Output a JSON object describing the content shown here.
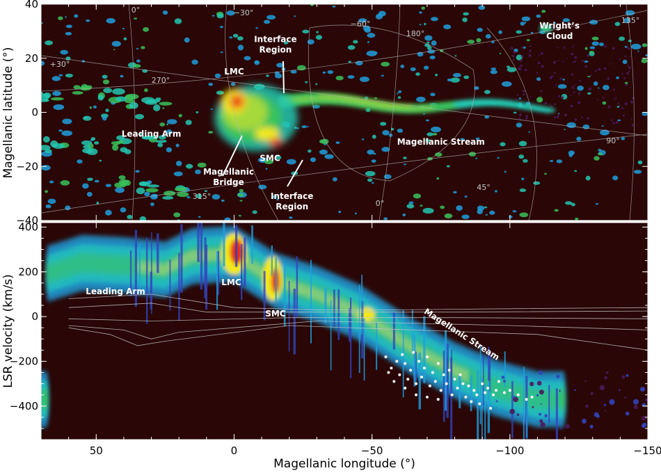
{
  "chart_data": [
    {
      "type": "heatmap",
      "panel": "top",
      "description_source": "HI column density map in Magellanic coordinates",
      "xlabel": "",
      "ylabel": "Magellanic latitude (°)",
      "xlim": [
        70,
        -150
      ],
      "ylim": [
        -40,
        40
      ],
      "yticks": [
        40,
        20,
        0,
        -20,
        -40
      ],
      "yticklabels": [
        "40",
        "20",
        "0",
        "−20",
        "−40"
      ],
      "coordinate_grid_labels": [
        "0°",
        "−30°",
        "−60°",
        "180°",
        "+30°",
        "270°",
        "315°",
        "0°",
        "45°",
        "90°",
        "135°"
      ],
      "annotations": [
        {
          "text": "Interface",
          "text2": "Region",
          "x": -15,
          "y": 26
        },
        {
          "text": "LMC",
          "x": 0,
          "y": 14
        },
        {
          "text": "Wright’s",
          "text2": "Cloud",
          "x": -118,
          "y": 31
        },
        {
          "text": "Leading Arm",
          "x": 30,
          "y": -9
        },
        {
          "text": "SMC",
          "x": -13,
          "y": -18
        },
        {
          "text": "Magellanic",
          "text2": "Bridge",
          "x": 2,
          "y": -23
        },
        {
          "text": "Magellanic Stream",
          "x": -75,
          "y": -12
        },
        {
          "text": "Interface",
          "text2": "Region",
          "x": -21,
          "y": -32
        }
      ],
      "emission_features": [
        {
          "name": "LMC",
          "lon": 0,
          "lat": 3
        },
        {
          "name": "SMC",
          "lon": -15,
          "lat": -11
        },
        {
          "name": "Magellanic Stream",
          "lon_range": [
            -20,
            -115
          ],
          "lat_center": 1
        },
        {
          "name": "Leading Arm",
          "lon_range": [
            65,
            35
          ],
          "lat_center": -10
        },
        {
          "name": "Wright’s Cloud",
          "lon": -113,
          "lat": 30
        }
      ]
    },
    {
      "type": "heatmap",
      "panel": "bottom",
      "xlabel": "Magellanic longitude (°)",
      "ylabel": "LSR velocity (km/s)",
      "xlim": [
        70,
        -150
      ],
      "ylim": [
        -550,
        420
      ],
      "xticks": [
        50,
        0,
        -50,
        -100,
        -150
      ],
      "xticklabels": [
        "50",
        "0",
        "−50",
        "−100",
        "−150"
      ],
      "yticks": [
        400,
        200,
        0,
        -200,
        -400
      ],
      "yticklabels": [
        "400",
        "200",
        "0",
        "−200",
        "−400"
      ],
      "annotations": [
        {
          "text": "LMC",
          "x": 1,
          "y": 140
        },
        {
          "text": "Leading Arm",
          "x": 43,
          "y": 100
        },
        {
          "text": "SMC",
          "x": -15,
          "y": 0
        },
        {
          "text": "Magellanic Stream",
          "x": -82,
          "y": -90
        }
      ],
      "emission_ridge": [
        {
          "lon": 68,
          "v": 190
        },
        {
          "lon": 55,
          "v": 240
        },
        {
          "lon": 40,
          "v": 230
        },
        {
          "lon": 25,
          "v": 210
        },
        {
          "lon": 15,
          "v": 270
        },
        {
          "lon": 0,
          "v": 280
        },
        {
          "lon": -15,
          "v": 160
        },
        {
          "lon": -30,
          "v": 100
        },
        {
          "lon": -45,
          "v": 20
        },
        {
          "lon": -55,
          "v": -60
        },
        {
          "lon": -65,
          "v": -140
        },
        {
          "lon": -80,
          "v": -240
        },
        {
          "lon": -95,
          "v": -320
        },
        {
          "lon": -110,
          "v": -370
        }
      ],
      "white_points": [
        {
          "lon": -55,
          "v": -180
        },
        {
          "lon": -56,
          "v": -250
        },
        {
          "lon": -57,
          "v": -230
        },
        {
          "lon": -59,
          "v": -200
        },
        {
          "lon": -60,
          "v": -260
        },
        {
          "lon": -61,
          "v": -170
        },
        {
          "lon": -62,
          "v": -210
        },
        {
          "lon": -63,
          "v": -280
        },
        {
          "lon": -64,
          "v": -240
        },
        {
          "lon": -65,
          "v": -160
        },
        {
          "lon": -66,
          "v": -300
        },
        {
          "lon": -67,
          "v": -200
        },
        {
          "lon": -68,
          "v": -270
        },
        {
          "lon": -69,
          "v": -230
        },
        {
          "lon": -70,
          "v": -180
        },
        {
          "lon": -71,
          "v": -310
        },
        {
          "lon": -72,
          "v": -250
        },
        {
          "lon": -73,
          "v": -290
        },
        {
          "lon": -74,
          "v": -210
        },
        {
          "lon": -75,
          "v": -330
        },
        {
          "lon": -76,
          "v": -260
        },
        {
          "lon": -77,
          "v": -300
        },
        {
          "lon": -78,
          "v": -240
        },
        {
          "lon": -79,
          "v": -350
        },
        {
          "lon": -80,
          "v": -280
        },
        {
          "lon": -81,
          "v": -320
        },
        {
          "lon": -82,
          "v": -260
        },
        {
          "lon": -83,
          "v": -300
        },
        {
          "lon": -84,
          "v": -360
        },
        {
          "lon": -85,
          "v": -310
        },
        {
          "lon": -86,
          "v": -380
        },
        {
          "lon": -87,
          "v": -330
        },
        {
          "lon": -88,
          "v": -350
        },
        {
          "lon": -89,
          "v": -390
        },
        {
          "lon": -90,
          "v": -300
        },
        {
          "lon": -91,
          "v": -340
        },
        {
          "lon": -92,
          "v": -320
        },
        {
          "lon": -93,
          "v": -410
        },
        {
          "lon": -94,
          "v": -350
        },
        {
          "lon": -95,
          "v": -330
        },
        {
          "lon": -96,
          "v": -290
        },
        {
          "lon": -98,
          "v": -340
        },
        {
          "lon": -100,
          "v": -330
        },
        {
          "lon": -103,
          "v": -350
        },
        {
          "lon": -106,
          "v": -370
        },
        {
          "lon": -108,
          "v": -360
        },
        {
          "lon": -58,
          "v": -290
        },
        {
          "lon": -62,
          "v": -320
        },
        {
          "lon": -66,
          "v": -350
        },
        {
          "lon": -70,
          "v": -360
        },
        {
          "lon": -74,
          "v": -370
        }
      ]
    }
  ],
  "colors": {
    "background": "#2a0606",
    "colormap": [
      "#4a1a5a",
      "#3344bb",
      "#1f9fdc",
      "#22c7b0",
      "#38c25b",
      "#a6d93a",
      "#f2e81c",
      "#f59a1a",
      "#e82a1a",
      "#ff3a2a"
    ],
    "annotation_text": "#ffffff",
    "grid_lines": "#b4b4b4",
    "frame": "#ffffff"
  }
}
